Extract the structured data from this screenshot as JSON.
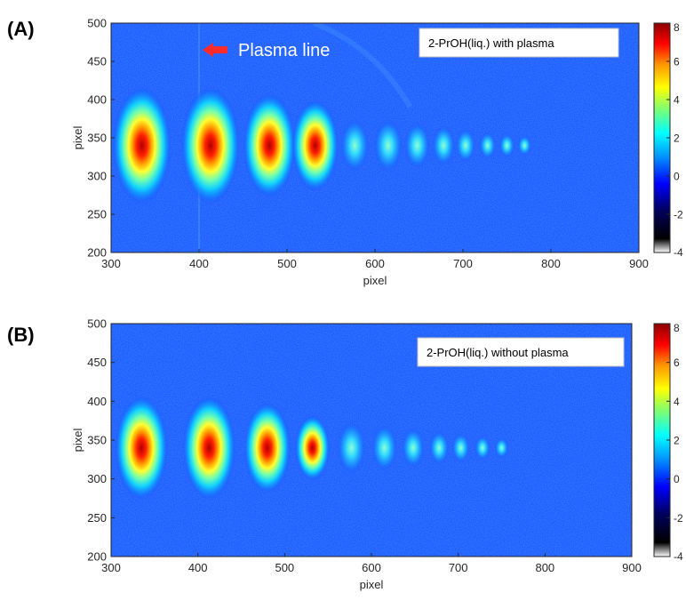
{
  "chart_data": [
    {
      "type": "heatmap",
      "panel_label": "(A)",
      "title": "",
      "xlabel": "pixel",
      "ylabel": "pixel",
      "xlim": [
        300,
        900
      ],
      "ylim": [
        200,
        500
      ],
      "xticks": [
        "300",
        "400",
        "500",
        "600",
        "700",
        "800",
        "900"
      ],
      "yticks": [
        "200",
        "250",
        "300",
        "350",
        "400",
        "450",
        "500"
      ],
      "colorbar": {
        "ticks": [
          "8",
          "6",
          "4",
          "2",
          "0",
          "-2",
          "-4"
        ],
        "range": [
          -4,
          8
        ]
      },
      "legend_text": "2-PrOH(liq.) with plasma",
      "annotation": {
        "text": "Plasma line",
        "arrow_x": 400,
        "arrow_y": 465,
        "line_x": 400,
        "color": "#ff2a2a"
      },
      "spots": [
        {
          "x": 335,
          "y": 340,
          "intensity": 8
        },
        {
          "x": 413,
          "y": 340,
          "intensity": 8
        },
        {
          "x": 480,
          "y": 340,
          "intensity": 7
        },
        {
          "x": 532,
          "y": 340,
          "intensity": 6
        },
        {
          "x": 577,
          "y": 340,
          "intensity": 3
        },
        {
          "x": 615,
          "y": 340,
          "intensity": 3
        },
        {
          "x": 648,
          "y": 340,
          "intensity": 2.5
        },
        {
          "x": 678,
          "y": 340,
          "intensity": 2
        },
        {
          "x": 703,
          "y": 340,
          "intensity": 1.5
        },
        {
          "x": 728,
          "y": 340,
          "intensity": 1
        },
        {
          "x": 750,
          "y": 340,
          "intensity": 0.8
        },
        {
          "x": 770,
          "y": 340,
          "intensity": 0.5
        }
      ],
      "background_level": 0,
      "colors": {
        "background": "#1447ff",
        "high": "#a00000"
      }
    },
    {
      "type": "heatmap",
      "panel_label": "(B)",
      "title": "",
      "xlabel": "pixel",
      "ylabel": "pixel",
      "xlim": [
        300,
        900
      ],
      "ylim": [
        200,
        500
      ],
      "xticks": [
        "300",
        "400",
        "500",
        "600",
        "700",
        "800",
        "900"
      ],
      "yticks": [
        "200",
        "250",
        "300",
        "350",
        "400",
        "450",
        "500"
      ],
      "colorbar": {
        "ticks": [
          "8",
          "6",
          "4",
          "2",
          "0",
          "-2",
          "-4"
        ],
        "range": [
          -4,
          8
        ]
      },
      "legend_text": "2-PrOH(liq.) without plasma",
      "spots": [
        {
          "x": 335,
          "y": 340,
          "intensity": 7
        },
        {
          "x": 413,
          "y": 340,
          "intensity": 7
        },
        {
          "x": 480,
          "y": 340,
          "intensity": 6
        },
        {
          "x": 532,
          "y": 340,
          "intensity": 4
        },
        {
          "x": 577,
          "y": 340,
          "intensity": 3
        },
        {
          "x": 615,
          "y": 340,
          "intensity": 2.5
        },
        {
          "x": 648,
          "y": 340,
          "intensity": 2
        },
        {
          "x": 678,
          "y": 340,
          "intensity": 1.5
        },
        {
          "x": 703,
          "y": 340,
          "intensity": 1.2
        },
        {
          "x": 728,
          "y": 340,
          "intensity": 0.8
        },
        {
          "x": 750,
          "y": 340,
          "intensity": 0.5
        }
      ],
      "background_level": 0,
      "colors": {
        "background": "#1447ff",
        "high": "#a00000"
      }
    }
  ]
}
